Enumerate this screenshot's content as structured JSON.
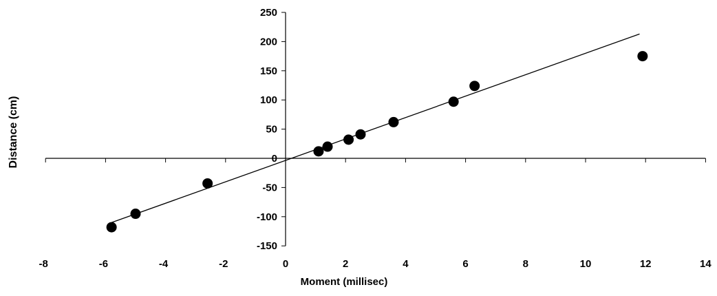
{
  "chart_data": {
    "type": "scatter",
    "title": "",
    "xlabel": "Moment (millisec)",
    "ylabel": "Distance (cm)",
    "xlim": [
      -8,
      14
    ],
    "ylim": [
      -150,
      250
    ],
    "x_ticks": [
      "-8",
      "-6",
      "-4",
      "-2",
      "0",
      "2",
      "4",
      "6",
      "8",
      "10",
      "12",
      "14"
    ],
    "y_ticks": [
      "-150",
      "-100",
      "-50",
      "0",
      "50",
      "100",
      "150",
      "200",
      "250"
    ],
    "grid": false,
    "legend": "none",
    "points": [
      {
        "x": -5.8,
        "y": -118
      },
      {
        "x": -5.0,
        "y": -95
      },
      {
        "x": -2.6,
        "y": -43
      },
      {
        "x": 1.1,
        "y": 12
      },
      {
        "x": 1.4,
        "y": 20
      },
      {
        "x": 2.1,
        "y": 32
      },
      {
        "x": 2.5,
        "y": 41
      },
      {
        "x": 3.6,
        "y": 62
      },
      {
        "x": 5.6,
        "y": 97
      },
      {
        "x": 6.3,
        "y": 124
      },
      {
        "x": 11.9,
        "y": 175
      }
    ],
    "trendline": {
      "x1": -5.8,
      "y1": -110,
      "x2": 11.8,
      "y2": 213
    },
    "colors": {
      "marker": "#000000",
      "line": "#000000"
    }
  }
}
